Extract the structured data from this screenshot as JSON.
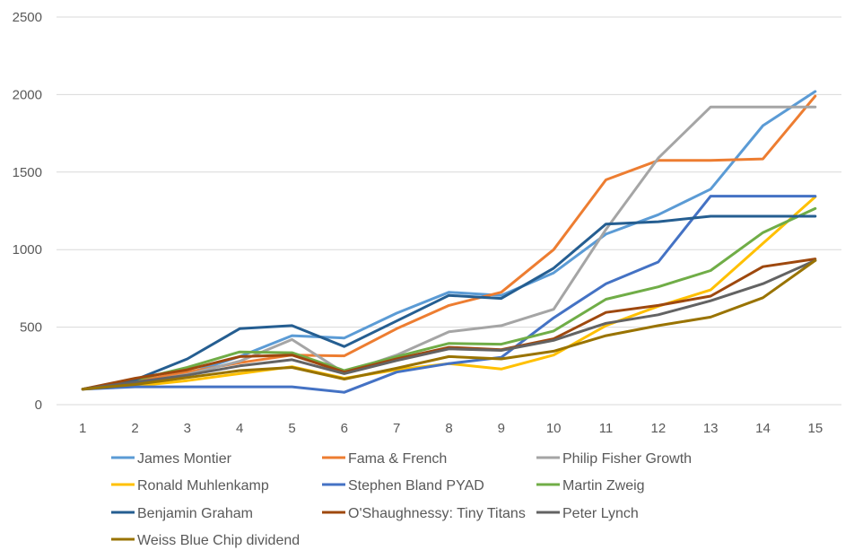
{
  "chart_data": {
    "type": "line",
    "title": "",
    "xlabel": "",
    "ylabel": "",
    "x": [
      1,
      2,
      3,
      4,
      5,
      6,
      7,
      8,
      9,
      10,
      11,
      12,
      13,
      14,
      15
    ],
    "ylim": [
      0,
      2500
    ],
    "yticks": [
      0,
      500,
      1000,
      1500,
      2000,
      2500
    ],
    "grid": "horizontal",
    "legend_position": "bottom",
    "series": [
      {
        "name": "James Montier",
        "color": "#5B9BD5",
        "values": [
          100,
          150,
          200,
          310,
          445,
          430,
          590,
          725,
          705,
          850,
          1100,
          1225,
          1390,
          1800,
          2020
        ]
      },
      {
        "name": "Fama & French",
        "color": "#ED7D31",
        "values": [
          100,
          150,
          210,
          270,
          320,
          315,
          490,
          640,
          725,
          1000,
          1450,
          1575,
          1575,
          1585,
          1990
        ]
      },
      {
        "name": "Philip Fisher Growth",
        "color": "#A5A5A5",
        "values": [
          100,
          140,
          195,
          280,
          420,
          205,
          320,
          470,
          510,
          615,
          1130,
          1590,
          1920,
          1920,
          1920
        ]
      },
      {
        "name": "Ronald Muhlenkamp",
        "color": "#FFC000",
        "values": [
          100,
          120,
          155,
          200,
          245,
          170,
          225,
          265,
          230,
          320,
          510,
          635,
          740,
          1040,
          1340
        ]
      },
      {
        "name": "Stephen Bland PYAD",
        "color": "#4472C4",
        "values": [
          100,
          115,
          115,
          115,
          115,
          80,
          210,
          265,
          305,
          560,
          780,
          920,
          1345,
          1345,
          1345
        ]
      },
      {
        "name": "Martin Zweig",
        "color": "#70AD47",
        "values": [
          100,
          160,
          240,
          340,
          335,
          220,
          310,
          395,
          390,
          475,
          680,
          760,
          865,
          1110,
          1265
        ]
      },
      {
        "name": "Benjamin Graham",
        "color": "#255E91",
        "values": [
          100,
          160,
          295,
          490,
          510,
          375,
          540,
          705,
          685,
          880,
          1165,
          1180,
          1215,
          1215,
          1215
        ]
      },
      {
        "name": "O'Shaughnessy: Tiny Titans",
        "color": "#9E480E",
        "values": [
          100,
          170,
          225,
          310,
          320,
          210,
          295,
          370,
          355,
          425,
          595,
          640,
          700,
          890,
          940
        ]
      },
      {
        "name": "Peter Lynch",
        "color": "#636363",
        "values": [
          100,
          145,
          190,
          250,
          290,
          200,
          285,
          360,
          350,
          415,
          525,
          580,
          670,
          780,
          930
        ]
      },
      {
        "name": "Weiss Blue Chip dividend",
        "color": "#997300",
        "values": [
          100,
          130,
          175,
          220,
          240,
          165,
          235,
          310,
          295,
          345,
          445,
          510,
          565,
          690,
          930
        ]
      }
    ]
  }
}
